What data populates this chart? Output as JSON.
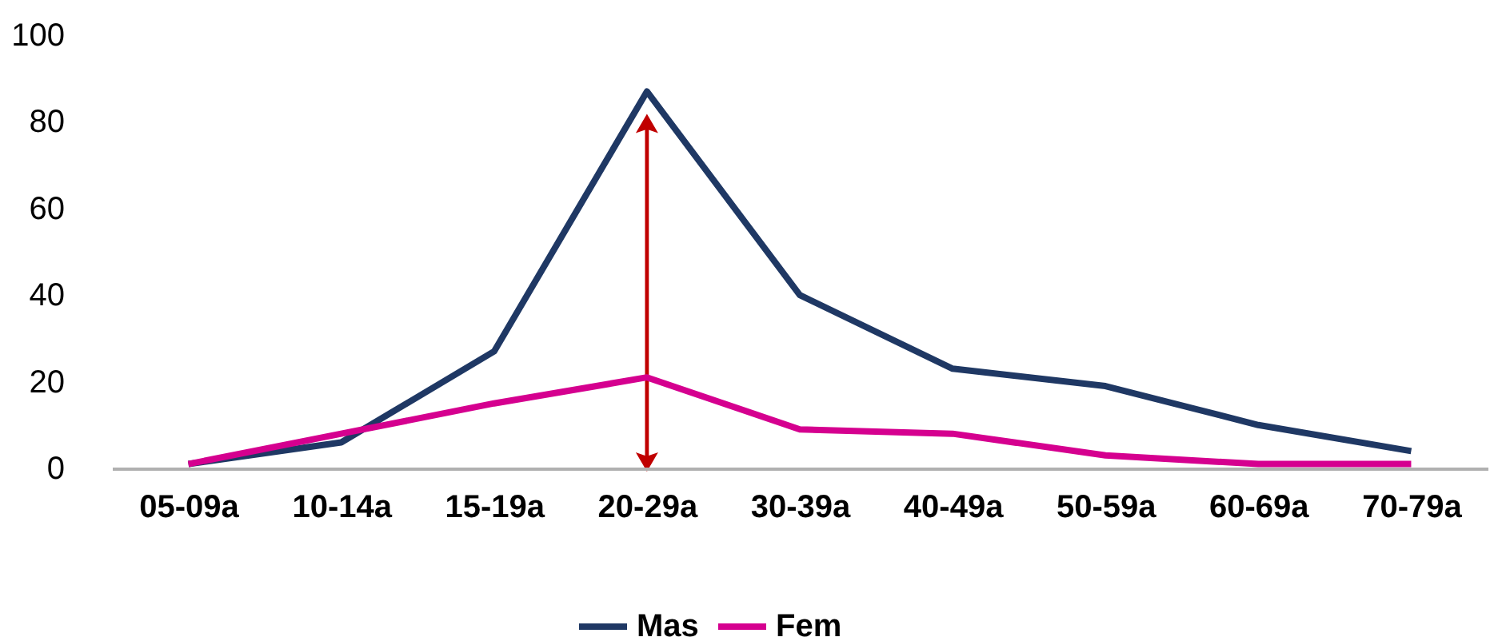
{
  "chart_data": {
    "type": "line",
    "categories": [
      "05-09a",
      "10-14a",
      "15-19a",
      "20-29a",
      "30-39a",
      "40-49a",
      "50-59a",
      "60-69a",
      "70-79a"
    ],
    "series": [
      {
        "name": "Mas",
        "color": "#1f3864",
        "values": [
          1,
          6,
          27,
          87,
          40,
          23,
          19,
          10,
          4
        ]
      },
      {
        "name": "Fem",
        "color": "#d5008f",
        "values": [
          1,
          8,
          15,
          21,
          9,
          8,
          3,
          1,
          1
        ]
      }
    ],
    "ylim": [
      0,
      100
    ],
    "yticks": [
      0,
      20,
      40,
      60,
      80,
      100
    ],
    "grid": false,
    "legend": "bottom",
    "marker": "none",
    "line_style": "solid"
  }
}
